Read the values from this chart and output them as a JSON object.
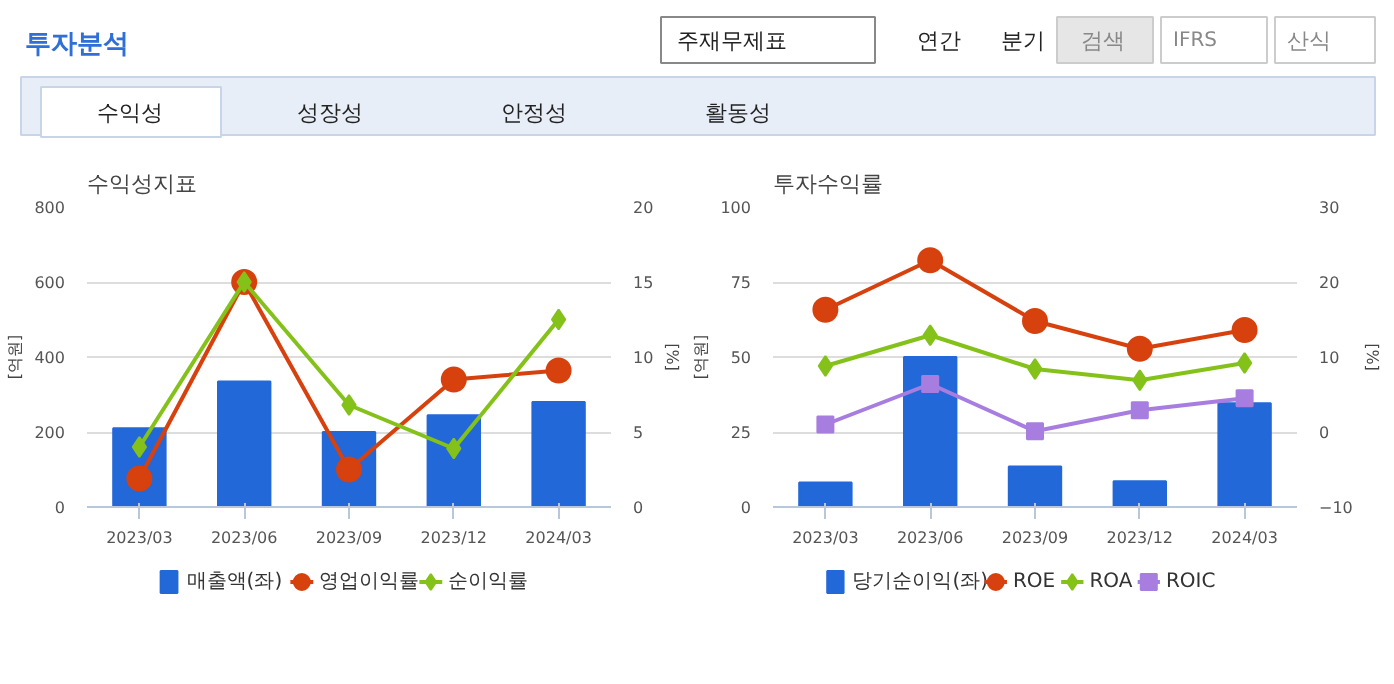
{
  "chart_data": [
    {
      "type": "other",
      "annotations": [
        "투자분석",
        "주재무제표",
        "연간",
        "분기",
        "검색",
        "IFRS",
        "산식",
        "수익성",
        "성장성",
        "안정성",
        "활동성"
      ]
    },
    {
      "type": "bar",
      "title": "수익성지표",
      "ylabel": "[억원]",
      "y2label": "[%]",
      "categories": [
        "2023/03",
        "2023/06",
        "2023/09",
        "2023/12",
        "2024/03"
      ],
      "ylim": [
        0,
        800
      ],
      "yticks": [
        0,
        200,
        400,
        600,
        800
      ],
      "y2lim": [
        0,
        20
      ],
      "y2ticks": [
        0,
        5,
        10,
        15,
        20
      ],
      "grid": "y",
      "legend": "bottom",
      "series": [
        {
          "name": "매출액(좌)",
          "type": "bar",
          "color": "#2268d8",
          "values": [
            210,
            335,
            200,
            245,
            280
          ]
        },
        {
          "name": "영업이익률",
          "type": "line",
          "axis": "y2",
          "marker": "circle",
          "color": "#d6410e",
          "values": [
            1.9,
            15.0,
            2.5,
            8.5,
            9.1
          ]
        },
        {
          "name": "순이익률",
          "type": "line",
          "axis": "y2",
          "marker": "diamond",
          "color": "#84c21a",
          "values": [
            4.0,
            15.0,
            6.8,
            3.9,
            12.5
          ]
        }
      ]
    },
    {
      "type": "bar",
      "title": "투자수익률",
      "ylabel": "[억원]",
      "y2label": "[%]",
      "categories": [
        "2023/03",
        "2023/06",
        "2023/09",
        "2023/12",
        "2024/03"
      ],
      "ylim": [
        0,
        100
      ],
      "yticks": [
        0,
        25,
        50,
        75,
        100
      ],
      "y2lim": [
        -10,
        30
      ],
      "y2ticks": [
        -10,
        0,
        10,
        20,
        30
      ],
      "grid": "y",
      "legend": "bottom",
      "series": [
        {
          "name": "당기순이익(좌)",
          "type": "bar",
          "color": "#2268d8",
          "values": [
            8.2,
            50,
            13.5,
            8.6,
            34.6
          ]
        },
        {
          "name": "ROE",
          "type": "line",
          "axis": "y2",
          "marker": "circle",
          "color": "#d6410e",
          "values": [
            16.3,
            22.9,
            14.8,
            11.1,
            13.6
          ]
        },
        {
          "name": "ROA",
          "type": "line",
          "axis": "y2",
          "marker": "diamond",
          "color": "#84c21a",
          "values": [
            8.8,
            12.9,
            8.4,
            6.9,
            9.2
          ]
        },
        {
          "name": "ROIC",
          "type": "line",
          "axis": "y2",
          "marker": "square",
          "color": "#a77ee0",
          "values": [
            1.0,
            6.4,
            0.1,
            2.9,
            4.5
          ]
        }
      ]
    }
  ]
}
